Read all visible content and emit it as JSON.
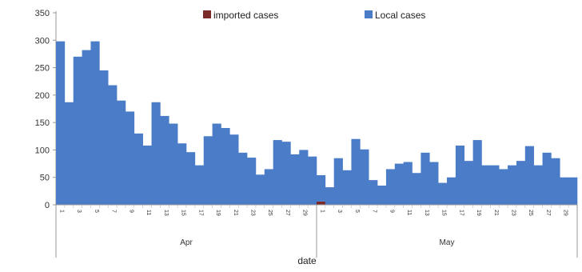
{
  "chart_data": {
    "type": "bar",
    "stacked": true,
    "xlabel": "date",
    "ylabel": "",
    "ylim": [
      0,
      350
    ],
    "yticks": [
      0,
      50,
      100,
      150,
      200,
      250,
      300,
      350
    ],
    "grid": false,
    "legend_position": "top",
    "groups": [
      {
        "label": "Apr",
        "count": 30
      },
      {
        "label": "May",
        "count": 30
      }
    ],
    "categories": [
      "1",
      "2",
      "3",
      "4",
      "5",
      "6",
      "7",
      "8",
      "9",
      "10",
      "11",
      "12",
      "13",
      "14",
      "15",
      "16",
      "17",
      "18",
      "19",
      "20",
      "21",
      "22",
      "23",
      "24",
      "25",
      "26",
      "27",
      "28",
      "29",
      "30",
      "1",
      "2",
      "3",
      "4",
      "5",
      "6",
      "7",
      "8",
      "9",
      "10",
      "11",
      "12",
      "13",
      "14",
      "15",
      "16",
      "17",
      "18",
      "19",
      "20",
      "21",
      "22",
      "23",
      "24",
      "25",
      "26",
      "27",
      "28",
      "29",
      "30"
    ],
    "tick_labels_shown": [
      "1",
      "3",
      "5",
      "7",
      "9",
      "11",
      "13",
      "15",
      "17",
      "19",
      "21",
      "23",
      "25",
      "27",
      "29",
      "1",
      "3",
      "5",
      "7",
      "9",
      "11",
      "13",
      "15",
      "17",
      "19",
      "21",
      "23",
      "25",
      "27",
      "29"
    ],
    "series": [
      {
        "name": "imported cases",
        "color": "#7b2a2a",
        "values": [
          0,
          0,
          0,
          0,
          0,
          0,
          0,
          0,
          0,
          0,
          0,
          0,
          0,
          0,
          0,
          0,
          0,
          0,
          0,
          0,
          0,
          0,
          0,
          0,
          0,
          0,
          0,
          0,
          0,
          0,
          6,
          0,
          0,
          0,
          0,
          0,
          0,
          0,
          0,
          0,
          0,
          0,
          0,
          0,
          0,
          0,
          0,
          0,
          0,
          0,
          0,
          0,
          0,
          0,
          0,
          0,
          0,
          0,
          0,
          0
        ]
      },
      {
        "name": "Local cases",
        "color": "#4a7cc7",
        "values": [
          298,
          187,
          270,
          282,
          298,
          245,
          218,
          190,
          170,
          130,
          108,
          187,
          162,
          148,
          112,
          96,
          72,
          125,
          148,
          140,
          128,
          95,
          86,
          55,
          65,
          118,
          115,
          92,
          100,
          88,
          48,
          32,
          85,
          63,
          120,
          101,
          45,
          35,
          65,
          75,
          78,
          58,
          95,
          78,
          40,
          50,
          108,
          80,
          118,
          72,
          72,
          65,
          72,
          80,
          107,
          72,
          95,
          85,
          50,
          50
        ]
      }
    ]
  }
}
